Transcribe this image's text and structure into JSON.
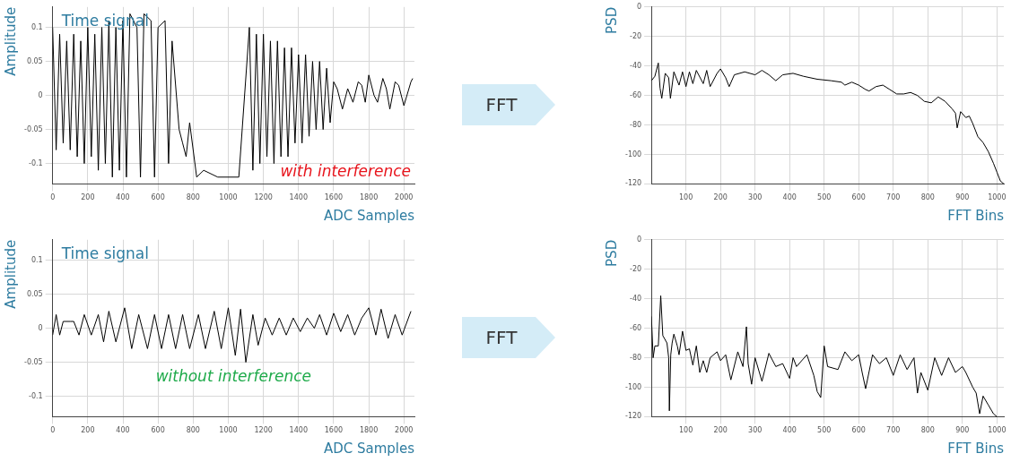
{
  "chart_data": [
    {
      "type": "line",
      "ylabel": "Amplitude",
      "xlabel": "ADC Samples",
      "annotations": [
        "Time signal",
        "with interference",
        "FFT"
      ],
      "xlim": [
        0,
        2060
      ],
      "xticks": [
        0,
        200,
        400,
        600,
        800,
        1000,
        1200,
        1400,
        1600,
        1800,
        2000
      ],
      "ylim": [
        -0.13,
        0.13
      ],
      "yticks": [
        -0.1,
        -0.05,
        0,
        0.05,
        0.1
      ],
      "grid": true,
      "legend": false,
      "marker": "none",
      "line_style": "solid",
      "series": [
        {
          "color": "#000000",
          "x": [
            0,
            20,
            40,
            60,
            80,
            100,
            120,
            140,
            160,
            180,
            200,
            220,
            240,
            260,
            280,
            300,
            320,
            340,
            360,
            380,
            400,
            420,
            440,
            460,
            480,
            500,
            520,
            540,
            560,
            580,
            600,
            620,
            640,
            660,
            680,
            700,
            720,
            740,
            760,
            780,
            800,
            820,
            840,
            860,
            880,
            900,
            920,
            940,
            960,
            980,
            1000,
            1020,
            1040,
            1060,
            1080,
            1100,
            1120,
            1140,
            1160,
            1180,
            1200,
            1220,
            1240,
            1260,
            1280,
            1300,
            1320,
            1340,
            1360,
            1380,
            1400,
            1420,
            1440,
            1460,
            1480,
            1500,
            1520,
            1540,
            1560,
            1580,
            1600,
            1620,
            1650,
            1680,
            1710,
            1740,
            1760,
            1780,
            1800,
            1830,
            1850,
            1880,
            1900,
            1920,
            1950,
            1970,
            2000,
            2040,
            2050
          ],
          "values": [
            0.1,
            -0.08,
            0.09,
            -0.07,
            0.08,
            -0.08,
            0.09,
            -0.09,
            0.08,
            -0.1,
            0.1,
            -0.09,
            0.09,
            -0.11,
            0.1,
            -0.1,
            0.11,
            -0.12,
            0.1,
            -0.11,
            0.11,
            -0.12,
            0.12,
            null,
            0.1,
            -0.12,
            0.12,
            null,
            0.11,
            -0.12,
            0.1,
            null,
            0.11,
            -0.1,
            0.08,
            null,
            -0.05,
            -0.07,
            -0.09,
            -0.04,
            null,
            -0.12,
            null,
            -0.11,
            null,
            null,
            null,
            -0.12,
            null,
            null,
            null,
            null,
            null,
            -0.12,
            null,
            null,
            0.1,
            -0.11,
            0.09,
            -0.1,
            0.09,
            -0.09,
            0.08,
            -0.1,
            0.08,
            -0.09,
            0.07,
            -0.09,
            0.07,
            -0.07,
            0.06,
            -0.07,
            0.06,
            -0.06,
            0.05,
            -0.05,
            0.05,
            -0.05,
            0.04,
            -0.04,
            0.02,
            0.01,
            -0.02,
            0.01,
            -0.01,
            0.02,
            0.015,
            -0.01,
            0.03,
            0,
            -0.01,
            0.025,
            0.01,
            -0.02,
            0.02,
            0.015,
            -0.015,
            0.02,
            0.025
          ]
        }
      ]
    },
    {
      "type": "line",
      "ylabel": "PSD",
      "xlabel": "FFT Bins",
      "xlim": [
        0,
        1020
      ],
      "xticks": [
        100,
        200,
        300,
        400,
        500,
        600,
        700,
        800,
        900,
        1000
      ],
      "ylim": [
        -120,
        0
      ],
      "yticks": [
        -120,
        -100,
        -80,
        -60,
        -40,
        -20,
        0
      ],
      "grid": true,
      "legend": false,
      "marker": "none",
      "line_style": "solid",
      "series": [
        {
          "color": "#000000",
          "x": [
            0,
            10,
            20,
            25,
            30,
            40,
            50,
            55,
            65,
            80,
            90,
            100,
            110,
            120,
            130,
            150,
            160,
            170,
            190,
            200,
            215,
            225,
            240,
            270,
            300,
            320,
            340,
            360,
            380,
            410,
            440,
            480,
            520,
            550,
            560,
            580,
            600,
            620,
            630,
            650,
            670,
            690,
            710,
            730,
            750,
            770,
            790,
            810,
            830,
            850,
            870,
            880,
            885,
            895,
            910,
            920,
            930,
            945,
            960,
            975,
            990,
            1000,
            1010,
            1020
          ],
          "values": [
            -50,
            -47,
            -38,
            -55,
            -62,
            -45,
            -48,
            -62,
            -44,
            -53,
            -44,
            -54,
            -44,
            -52,
            -43,
            -52,
            -43,
            -54,
            -45,
            -42,
            -48,
            -54,
            -46,
            -44,
            -46,
            -43,
            -46,
            -50,
            -46,
            -45,
            -47,
            -49,
            -50,
            -51,
            -53,
            -51,
            -53,
            -56,
            -57,
            -54,
            -53,
            -56,
            -59,
            -59,
            -58,
            -60,
            -64,
            -65,
            -61,
            -64,
            -69,
            -72,
            -82,
            -71,
            -75,
            -74,
            -79,
            -88,
            -92,
            -98,
            -106,
            -112,
            -118,
            -120
          ]
        }
      ]
    },
    {
      "type": "line",
      "ylabel": "Amplitude",
      "xlabel": "ADC Samples",
      "annotations": [
        "Time signal",
        "without interference",
        "FFT"
      ],
      "xlim": [
        0,
        2060
      ],
      "xticks": [
        0,
        200,
        400,
        600,
        800,
        1000,
        1200,
        1400,
        1600,
        1800,
        2000
      ],
      "ylim": [
        -0.13,
        0.13
      ],
      "yticks": [
        -0.1,
        -0.05,
        0,
        0.05,
        0.1
      ],
      "grid": true,
      "legend": false,
      "marker": "none",
      "line_style": "solid",
      "series": [
        {
          "color": "#000000",
          "x": [
            0,
            20,
            40,
            60,
            100,
            120,
            150,
            180,
            220,
            260,
            290,
            320,
            360,
            410,
            450,
            490,
            540,
            580,
            620,
            660,
            700,
            740,
            780,
            830,
            870,
            920,
            960,
            1000,
            1040,
            1070,
            1100,
            1140,
            1170,
            1210,
            1250,
            1290,
            1330,
            1370,
            1410,
            1450,
            1490,
            1520,
            1560,
            1600,
            1640,
            1680,
            1720,
            1760,
            1800,
            1840,
            1870,
            1910,
            1950,
            1990,
            2040
          ],
          "values": [
            -0.01,
            0.02,
            -0.01,
            0.01,
            0.01,
            0.01,
            -0.01,
            0.02,
            -0.01,
            0.02,
            -0.02,
            0.025,
            -0.02,
            0.03,
            -0.03,
            0.02,
            -0.03,
            0.02,
            -0.03,
            0.02,
            -0.03,
            0.02,
            -0.03,
            0.02,
            -0.03,
            0.025,
            -0.03,
            0.03,
            -0.04,
            0.028,
            -0.05,
            0.02,
            -0.025,
            0.015,
            -0.01,
            0.015,
            -0.01,
            0.015,
            -0.005,
            0.015,
            0,
            0.02,
            -0.01,
            0.022,
            -0.005,
            0.02,
            -0.01,
            0.015,
            0.03,
            -0.01,
            0.028,
            -0.015,
            0.02,
            -0.01,
            0.025
          ]
        }
      ]
    },
    {
      "type": "line",
      "ylabel": "PSD",
      "xlabel": "FFT Bins",
      "xlim": [
        0,
        1020
      ],
      "xticks": [
        100,
        200,
        300,
        400,
        500,
        600,
        700,
        800,
        900,
        1000
      ],
      "ylim": [
        -120,
        0
      ],
      "yticks": [
        -120,
        -100,
        -80,
        -60,
        -40,
        -20,
        0
      ],
      "grid": true,
      "legend": false,
      "marker": "none",
      "line_style": "solid",
      "series": [
        {
          "color": "#000000",
          "x": [
            0,
            5,
            10,
            20,
            27,
            33,
            45,
            50,
            52,
            56,
            60,
            65,
            75,
            80,
            90,
            100,
            110,
            120,
            130,
            140,
            150,
            160,
            170,
            190,
            200,
            215,
            230,
            250,
            265,
            275,
            280,
            290,
            300,
            320,
            340,
            360,
            380,
            400,
            410,
            420,
            450,
            470,
            480,
            490,
            500,
            510,
            540,
            560,
            580,
            600,
            610,
            620,
            640,
            660,
            680,
            700,
            720,
            740,
            760,
            770,
            780,
            800,
            820,
            840,
            860,
            880,
            900,
            910,
            930,
            940,
            950,
            960,
            975,
            990,
            1000
          ],
          "values": [
            -52,
            -80,
            -72,
            -72,
            -38,
            -65,
            -70,
            -80,
            -116,
            -78,
            -70,
            -64,
            -72,
            -78,
            -62,
            -75,
            -74,
            -85,
            -72,
            -90,
            -82,
            -90,
            -80,
            -76,
            -82,
            -78,
            -95,
            -76,
            -86,
            -59,
            -84,
            -98,
            -80,
            -96,
            -77,
            -86,
            -84,
            -94,
            -80,
            -86,
            -78,
            -92,
            -103,
            -107,
            -72,
            -86,
            -88,
            -76,
            -82,
            -78,
            -90,
            -101,
            -78,
            -84,
            -80,
            -92,
            -78,
            -88,
            -80,
            -104,
            -90,
            -102,
            -80,
            -92,
            -80,
            -90,
            -86,
            -90,
            -100,
            -104,
            -118,
            -106,
            -112,
            -118,
            -120
          ]
        }
      ]
    }
  ]
}
